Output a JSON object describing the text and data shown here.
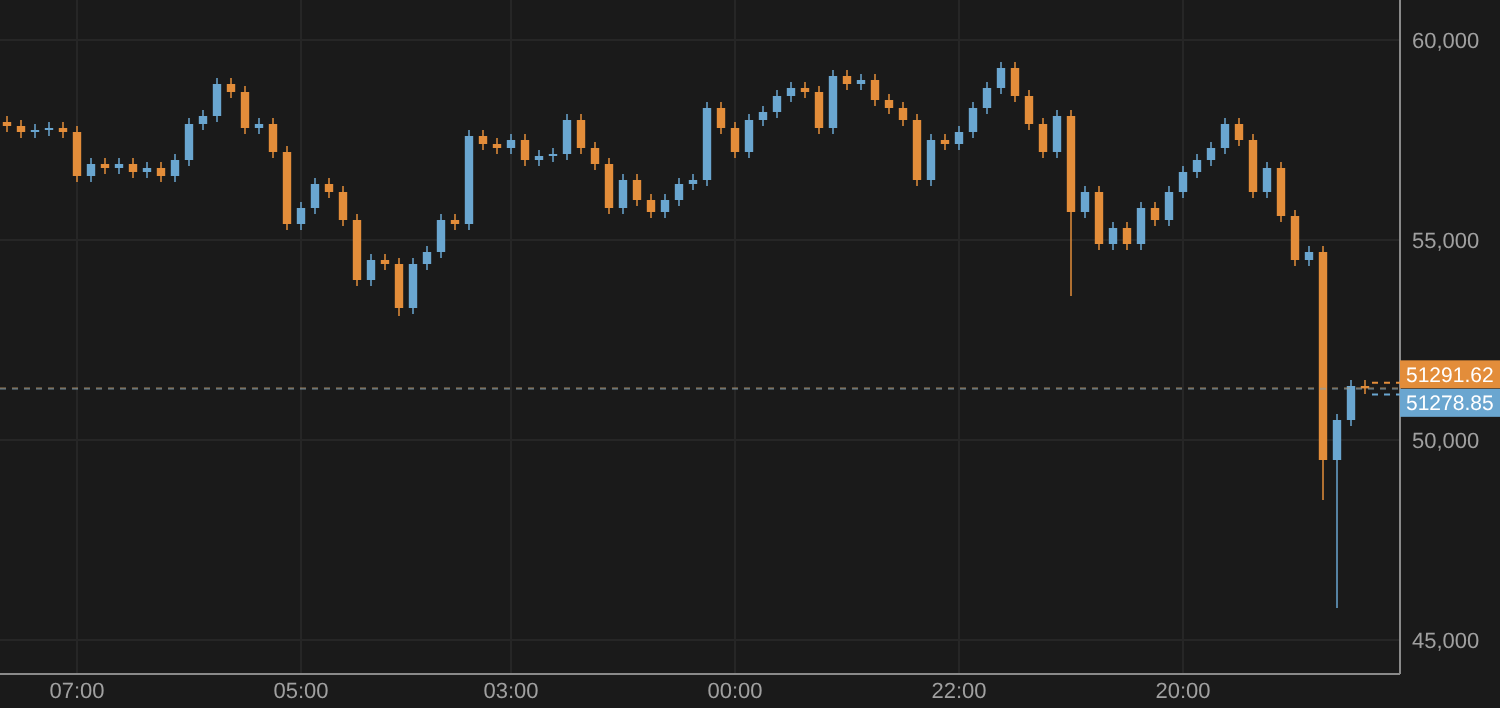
{
  "chart_data": {
    "type": "candlestick",
    "categories": [
      null,
      null,
      null,
      null,
      null,
      "07:00",
      null,
      null,
      null,
      null,
      null,
      null,
      null,
      null,
      null,
      null,
      null,
      null,
      null,
      null,
      null,
      "05:00",
      null,
      null,
      null,
      null,
      null,
      null,
      null,
      null,
      null,
      null,
      null,
      null,
      null,
      null,
      "03:00",
      null,
      null,
      null,
      null,
      null,
      null,
      null,
      null,
      null,
      null,
      null,
      null,
      null,
      null,
      null,
      "00:00",
      null,
      null,
      null,
      null,
      null,
      null,
      null,
      null,
      null,
      null,
      null,
      null,
      null,
      null,
      null,
      "22:00",
      null,
      null,
      null,
      null,
      null,
      null,
      null,
      null,
      null,
      null,
      null,
      null,
      null,
      null,
      null,
      "20:00",
      null,
      null,
      null,
      null,
      null,
      null,
      null,
      null,
      null,
      null,
      null,
      null,
      null
    ],
    "ohlc": [
      [
        57950,
        58100,
        57700,
        57850
      ],
      [
        57850,
        58000,
        57550,
        57700
      ],
      [
        57700,
        57900,
        57550,
        57750
      ],
      [
        57750,
        57950,
        57600,
        57800
      ],
      [
        57800,
        57950,
        57550,
        57700
      ],
      [
        57700,
        57850,
        56450,
        56600
      ],
      [
        56600,
        57050,
        56450,
        56900
      ],
      [
        56900,
        57050,
        56650,
        56800
      ],
      [
        56800,
        57050,
        56650,
        56900
      ],
      [
        56900,
        57050,
        56550,
        56700
      ],
      [
        56700,
        56950,
        56550,
        56800
      ],
      [
        56800,
        56950,
        56450,
        56600
      ],
      [
        56600,
        57150,
        56450,
        57000
      ],
      [
        57000,
        58050,
        56850,
        57900
      ],
      [
        57900,
        58250,
        57750,
        58100
      ],
      [
        58100,
        59050,
        57950,
        58900
      ],
      [
        58900,
        59050,
        58550,
        58700
      ],
      [
        58700,
        58850,
        57650,
        57800
      ],
      [
        57800,
        58050,
        57650,
        57900
      ],
      [
        57900,
        58050,
        57050,
        57200
      ],
      [
        57200,
        57350,
        55250,
        55400
      ],
      [
        55400,
        55950,
        55250,
        55800
      ],
      [
        55800,
        56550,
        55650,
        56400
      ],
      [
        56400,
        56550,
        56050,
        56200
      ],
      [
        56200,
        56350,
        55350,
        55500
      ],
      [
        55500,
        55650,
        53850,
        54000
      ],
      [
        54000,
        54650,
        53850,
        54500
      ],
      [
        54500,
        54650,
        54250,
        54400
      ],
      [
        54400,
        54550,
        53100,
        53300
      ],
      [
        53300,
        54550,
        53150,
        54400
      ],
      [
        54400,
        54850,
        54250,
        54700
      ],
      [
        54700,
        55650,
        54550,
        55500
      ],
      [
        55500,
        55650,
        55250,
        55400
      ],
      [
        55400,
        57750,
        55250,
        57600
      ],
      [
        57600,
        57750,
        57250,
        57400
      ],
      [
        57400,
        57550,
        57150,
        57300
      ],
      [
        57300,
        57650,
        57150,
        57500
      ],
      [
        57500,
        57650,
        56850,
        57000
      ],
      [
        57000,
        57250,
        56850,
        57100
      ],
      [
        57100,
        57300,
        56950,
        57150
      ],
      [
        57150,
        58150,
        57000,
        58000
      ],
      [
        58000,
        58150,
        57150,
        57300
      ],
      [
        57300,
        57450,
        56750,
        56900
      ],
      [
        56900,
        57050,
        55650,
        55800
      ],
      [
        55800,
        56650,
        55650,
        56500
      ],
      [
        56500,
        56650,
        55850,
        56000
      ],
      [
        56000,
        56150,
        55550,
        55700
      ],
      [
        55700,
        56150,
        55550,
        56000
      ],
      [
        56000,
        56550,
        55850,
        56400
      ],
      [
        56400,
        56650,
        56250,
        56500
      ],
      [
        56500,
        58450,
        56350,
        58300
      ],
      [
        58300,
        58450,
        57650,
        57800
      ],
      [
        57800,
        57950,
        57050,
        57200
      ],
      [
        57200,
        58150,
        57050,
        58000
      ],
      [
        58000,
        58350,
        57850,
        58200
      ],
      [
        58200,
        58750,
        58050,
        58600
      ],
      [
        58600,
        58950,
        58450,
        58800
      ],
      [
        58800,
        58950,
        58550,
        58700
      ],
      [
        58700,
        58850,
        57650,
        57800
      ],
      [
        57800,
        59250,
        57650,
        59100
      ],
      [
        59100,
        59250,
        58750,
        58900
      ],
      [
        58900,
        59150,
        58750,
        59000
      ],
      [
        59000,
        59150,
        58350,
        58500
      ],
      [
        58500,
        58650,
        58150,
        58300
      ],
      [
        58300,
        58450,
        57850,
        58000
      ],
      [
        58000,
        58150,
        56350,
        56500
      ],
      [
        56500,
        57650,
        56350,
        57500
      ],
      [
        57500,
        57650,
        57250,
        57400
      ],
      [
        57400,
        57850,
        57250,
        57700
      ],
      [
        57700,
        58450,
        57550,
        58300
      ],
      [
        58300,
        58950,
        58150,
        58800
      ],
      [
        58800,
        59450,
        58650,
        59300
      ],
      [
        59300,
        59450,
        58450,
        58600
      ],
      [
        58600,
        58750,
        57750,
        57900
      ],
      [
        57900,
        58050,
        57050,
        57200
      ],
      [
        57200,
        58250,
        57050,
        58100
      ],
      [
        58100,
        58250,
        53600,
        55700
      ],
      [
        55700,
        56350,
        55550,
        56200
      ],
      [
        56200,
        56350,
        54750,
        54900
      ],
      [
        54900,
        55450,
        54750,
        55300
      ],
      [
        55300,
        55450,
        54750,
        54900
      ],
      [
        54900,
        55950,
        54750,
        55800
      ],
      [
        55800,
        55950,
        55350,
        55500
      ],
      [
        55500,
        56350,
        55350,
        56200
      ],
      [
        56200,
        56850,
        56050,
        56700
      ],
      [
        56700,
        57150,
        56550,
        57000
      ],
      [
        57000,
        57450,
        56850,
        57300
      ],
      [
        57300,
        58050,
        57150,
        57900
      ],
      [
        57900,
        58050,
        57350,
        57500
      ],
      [
        57500,
        57650,
        56050,
        56200
      ],
      [
        56200,
        56950,
        56050,
        56800
      ],
      [
        56800,
        56950,
        55450,
        55600
      ],
      [
        55600,
        55750,
        54350,
        54500
      ],
      [
        54500,
        54850,
        54350,
        54700
      ],
      [
        54700,
        54850,
        48500,
        49500
      ],
      [
        49500,
        50650,
        45800,
        50500
      ],
      [
        50500,
        51500,
        50350,
        51350
      ],
      [
        51350,
        51500,
        51150,
        51290
      ]
    ],
    "colors": [
      "#e38d3a",
      "#e38d3a",
      "#6aa6d0",
      "#6aa6d0",
      "#e38d3a",
      "#e38d3a",
      "#6aa6d0",
      "#e38d3a",
      "#6aa6d0",
      "#e38d3a",
      "#6aa6d0",
      "#e38d3a",
      "#6aa6d0",
      "#6aa6d0",
      "#6aa6d0",
      "#6aa6d0",
      "#e38d3a",
      "#e38d3a",
      "#6aa6d0",
      "#e38d3a",
      "#e38d3a",
      "#6aa6d0",
      "#6aa6d0",
      "#e38d3a",
      "#e38d3a",
      "#e38d3a",
      "#6aa6d0",
      "#e38d3a",
      "#e38d3a",
      "#6aa6d0",
      "#6aa6d0",
      "#6aa6d0",
      "#e38d3a",
      "#6aa6d0",
      "#e38d3a",
      "#e38d3a",
      "#6aa6d0",
      "#e38d3a",
      "#6aa6d0",
      "#6aa6d0",
      "#6aa6d0",
      "#e38d3a",
      "#e38d3a",
      "#e38d3a",
      "#6aa6d0",
      "#e38d3a",
      "#e38d3a",
      "#6aa6d0",
      "#6aa6d0",
      "#6aa6d0",
      "#6aa6d0",
      "#e38d3a",
      "#e38d3a",
      "#6aa6d0",
      "#6aa6d0",
      "#6aa6d0",
      "#6aa6d0",
      "#e38d3a",
      "#e38d3a",
      "#6aa6d0",
      "#e38d3a",
      "#6aa6d0",
      "#e38d3a",
      "#e38d3a",
      "#e38d3a",
      "#e38d3a",
      "#6aa6d0",
      "#e38d3a",
      "#6aa6d0",
      "#6aa6d0",
      "#6aa6d0",
      "#6aa6d0",
      "#e38d3a",
      "#e38d3a",
      "#e38d3a",
      "#6aa6d0",
      "#e38d3a",
      "#6aa6d0",
      "#e38d3a",
      "#6aa6d0",
      "#e38d3a",
      "#6aa6d0",
      "#e38d3a",
      "#6aa6d0",
      "#6aa6d0",
      "#6aa6d0",
      "#6aa6d0",
      "#6aa6d0",
      "#e38d3a",
      "#e38d3a",
      "#6aa6d0",
      "#e38d3a",
      "#e38d3a",
      "#6aa6d0",
      "#e38d3a",
      "#6aa6d0",
      "#6aa6d0",
      "#e38d3a"
    ],
    "ylim": [
      44150,
      61000
    ],
    "yticks": [
      {
        "value": 45000,
        "label": "45,000"
      },
      {
        "value": 50000,
        "label": "50,000"
      },
      {
        "value": 55000,
        "label": "55,000"
      },
      {
        "value": 60000,
        "label": "60,000"
      }
    ],
    "grid": true,
    "ref_lines": [
      {
        "axis": "y",
        "value": 51291.62,
        "label": "51291.62",
        "color": "#e38d3a",
        "line_style": "dashed"
      },
      {
        "axis": "y",
        "value": 51278.85,
        "label": "51278.85",
        "color": "#6aa6d0",
        "line_style": "dashed"
      }
    ]
  }
}
